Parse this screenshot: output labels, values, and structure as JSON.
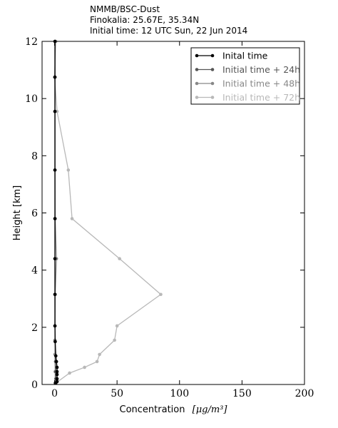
{
  "header": {
    "line1": "NMMB/BSC-Dust",
    "line2": "Finokalia: 25.67E, 35.34N",
    "line3": "Initial time: 12 UTC Sun, 22 Jun 2014"
  },
  "chart_data": {
    "type": "line",
    "xlabel_text": "Concentration",
    "xlabel_unit": "[μg/m³]",
    "ylabel": "Height [km]",
    "xlim": [
      -10,
      200
    ],
    "ylim": [
      0,
      12
    ],
    "xticks": [
      0,
      50,
      100,
      150,
      200
    ],
    "yticks": [
      0,
      2,
      4,
      6,
      8,
      10,
      12
    ],
    "grid": false,
    "legend_position": "top-right",
    "series": [
      {
        "name": "Inital time",
        "color": "#000000",
        "points": [
          [
            1,
            0.05
          ],
          [
            2,
            0.1
          ],
          [
            2,
            0.2
          ],
          [
            2,
            0.35
          ],
          [
            2,
            0.45
          ],
          [
            2,
            0.6
          ],
          [
            1.5,
            0.8
          ],
          [
            1,
            1.0
          ],
          [
            0.5,
            1.5
          ],
          [
            0.3,
            2.05
          ],
          [
            0.3,
            3.15
          ],
          [
            0.3,
            4.4
          ],
          [
            0.3,
            5.8
          ],
          [
            0.3,
            7.5
          ],
          [
            0.3,
            9.55
          ],
          [
            0.3,
            10.75
          ],
          [
            0.3,
            12
          ]
        ]
      },
      {
        "name": "Initial time + 24h",
        "color": "#555555",
        "points": [
          [
            0.5,
            0.05
          ],
          [
            1,
            0.2
          ],
          [
            1,
            0.45
          ],
          [
            0.8,
            0.8
          ],
          [
            0.5,
            1.5
          ],
          [
            0.3,
            2.05
          ],
          [
            0.3,
            3.15
          ],
          [
            0.3,
            4.4
          ],
          [
            0.3,
            5.8
          ],
          [
            0.3,
            7.5
          ],
          [
            0.3,
            9.55
          ],
          [
            0.3,
            10.75
          ],
          [
            0.3,
            12
          ]
        ]
      },
      {
        "name": "Initial time + 48h",
        "color": "#888888",
        "points": [
          [
            0.5,
            0.05
          ],
          [
            0.5,
            0.45
          ],
          [
            0.3,
            1.05
          ],
          [
            0.3,
            1.55
          ],
          [
            0.3,
            2.05
          ],
          [
            0.5,
            3.15
          ],
          [
            1.5,
            4.4
          ],
          [
            0.5,
            5.8
          ],
          [
            0.3,
            7.5
          ],
          [
            0.3,
            9.55
          ],
          [
            0.3,
            10.75
          ],
          [
            0.5,
            12
          ]
        ]
      },
      {
        "name": "Initial time + 72h",
        "color": "#b8b8b8",
        "points": [
          [
            1,
            0.05
          ],
          [
            12,
            0.4
          ],
          [
            24,
            0.6
          ],
          [
            34,
            0.8
          ],
          [
            36,
            1.05
          ],
          [
            48,
            1.55
          ],
          [
            50,
            2.05
          ],
          [
            85,
            3.15
          ],
          [
            52,
            4.4
          ],
          [
            14,
            5.8
          ],
          [
            11,
            7.5
          ],
          [
            2,
            9.55
          ],
          [
            0,
            10.75
          ],
          [
            1,
            12
          ]
        ]
      }
    ]
  }
}
